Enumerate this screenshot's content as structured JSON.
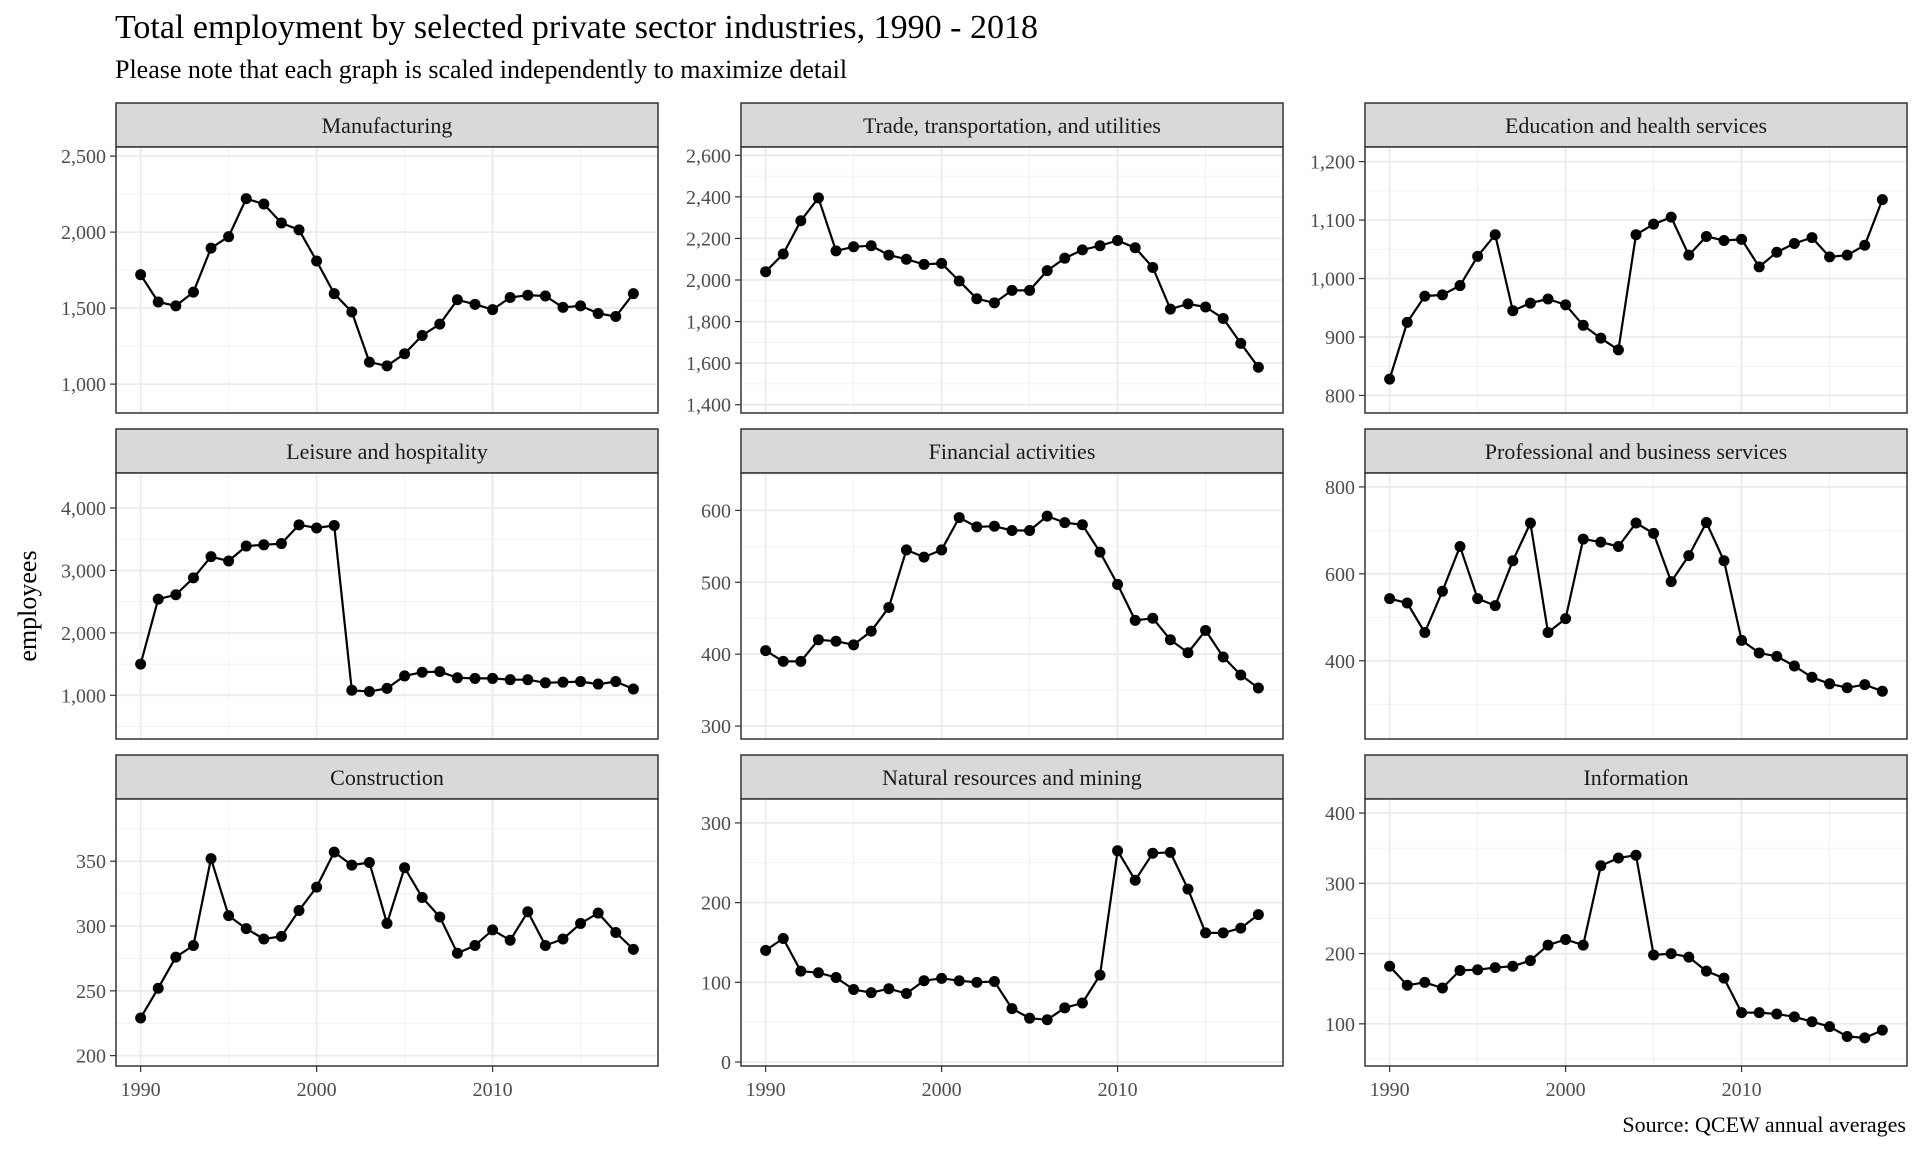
{
  "title": "Total employment by selected private sector industries, 1990 - 2018",
  "subtitle": "Please note that each graph is scaled independently to maximize detail",
  "ylabel": "employees",
  "caption": "Source: QCEW annual averages",
  "chart_data": {
    "type": "line",
    "x_ticks": [
      1990,
      2000,
      2010
    ],
    "xlim": [
      1988.6,
      2019.4
    ],
    "panels": [
      {
        "name": "Manufacturing",
        "ylim": [
          810,
          2560
        ],
        "y_ticks": [
          1000,
          1500,
          2000,
          2500
        ],
        "y_tick_labels": [
          "1,000",
          "1,500",
          "2,000",
          "2,500"
        ],
        "x": [
          1990,
          1991,
          1992,
          1993,
          1994,
          1995,
          1996,
          1997,
          1998,
          1999,
          2000,
          2001,
          2002,
          2003,
          2004,
          2005,
          2006,
          2007,
          2008,
          2009,
          2010,
          2011,
          2012,
          2013,
          2014,
          2015,
          2016,
          2017,
          2018
        ],
        "values": [
          1720,
          1540,
          1515,
          1605,
          1895,
          1970,
          2220,
          2185,
          2060,
          2015,
          1810,
          1595,
          1475,
          1145,
          1120,
          1200,
          1320,
          1395,
          1555,
          1525,
          1490,
          1570,
          1585,
          1580,
          1505,
          1515,
          1465,
          1445,
          1595
        ]
      },
      {
        "name": "Trade, transportation, and utilities",
        "ylim": [
          1360,
          2640
        ],
        "y_ticks": [
          1400,
          1600,
          1800,
          2000,
          2200,
          2400,
          2600
        ],
        "y_tick_labels": [
          "1,400",
          "1,600",
          "1,800",
          "2,000",
          "2,200",
          "2,400",
          "2,600"
        ],
        "x": [
          1990,
          1991,
          1992,
          1993,
          1994,
          1995,
          1996,
          1997,
          1998,
          1999,
          2000,
          2001,
          2002,
          2003,
          2004,
          2005,
          2006,
          2007,
          2008,
          2009,
          2010,
          2011,
          2012,
          2013,
          2014,
          2015,
          2016,
          2017,
          2018
        ],
        "values": [
          2040,
          2125,
          2285,
          2395,
          2140,
          2160,
          2165,
          2120,
          2100,
          2075,
          2080,
          1995,
          1910,
          1890,
          1950,
          1950,
          2045,
          2105,
          2145,
          2165,
          2190,
          2155,
          2060,
          1860,
          1885,
          1870,
          1815,
          1695,
          1580
        ]
      },
      {
        "name": "Education and health services",
        "ylim": [
          770,
          1225
        ],
        "y_ticks": [
          800,
          900,
          1000,
          1100,
          1200
        ],
        "y_tick_labels": [
          "800",
          "900",
          "1,000",
          "1,100",
          "1,200"
        ],
        "x": [
          1990,
          1991,
          1992,
          1993,
          1994,
          1995,
          1996,
          1997,
          1998,
          1999,
          2000,
          2001,
          2002,
          2003,
          2004,
          2005,
          2006,
          2007,
          2008,
          2009,
          2010,
          2011,
          2012,
          2013,
          2014,
          2015,
          2016,
          2017,
          2018
        ],
        "values": [
          828,
          925,
          970,
          972,
          988,
          1038,
          1075,
          945,
          958,
          965,
          955,
          920,
          898,
          878,
          1075,
          1093,
          1105,
          1040,
          1072,
          1065,
          1067,
          1020,
          1045,
          1060,
          1070,
          1037,
          1040,
          1057,
          1135
        ]
      },
      {
        "name": "Leisure and hospitality",
        "ylim": [
          300,
          4560
        ],
        "y_ticks": [
          1000,
          2000,
          3000,
          4000
        ],
        "y_tick_labels": [
          "1,000",
          "2,000",
          "3,000",
          "4,000"
        ],
        "x": [
          1990,
          1991,
          1992,
          1993,
          1994,
          1995,
          1996,
          1997,
          1998,
          1999,
          2000,
          2001,
          2002,
          2003,
          2004,
          2005,
          2006,
          2007,
          2008,
          2009,
          2010,
          2011,
          2012,
          2013,
          2014,
          2015,
          2016,
          2017,
          2018
        ],
        "values": [
          1500,
          2540,
          2610,
          2880,
          3220,
          3150,
          3390,
          3410,
          3430,
          3730,
          3680,
          3720,
          1080,
          1060,
          1110,
          1310,
          1370,
          1380,
          1280,
          1270,
          1270,
          1250,
          1250,
          1200,
          1210,
          1220,
          1180,
          1220,
          1100
        ]
      },
      {
        "name": "Financial activities",
        "ylim": [
          282,
          652
        ],
        "y_ticks": [
          300,
          400,
          500,
          600
        ],
        "y_tick_labels": [
          "300",
          "400",
          "500",
          "600"
        ],
        "x": [
          1990,
          1991,
          1992,
          1993,
          1994,
          1995,
          1996,
          1997,
          1998,
          1999,
          2000,
          2001,
          2002,
          2003,
          2004,
          2005,
          2006,
          2007,
          2008,
          2009,
          2010,
          2011,
          2012,
          2013,
          2014,
          2015,
          2016,
          2017,
          2018
        ],
        "values": [
          405,
          390,
          390,
          420,
          418,
          413,
          432,
          465,
          545,
          535,
          545,
          590,
          577,
          578,
          572,
          572,
          592,
          583,
          580,
          542,
          497,
          447,
          450,
          420,
          402,
          433,
          396,
          371,
          353
        ]
      },
      {
        "name": "Professional and business services",
        "ylim": [
          220,
          832
        ],
        "y_ticks": [
          400,
          600,
          800
        ],
        "y_tick_labels": [
          "400",
          "600",
          "800"
        ],
        "x": [
          1990,
          1991,
          1992,
          1993,
          1994,
          1995,
          1996,
          1997,
          1998,
          1999,
          2000,
          2001,
          2002,
          2003,
          2004,
          2005,
          2006,
          2007,
          2008,
          2009,
          2010,
          2011,
          2012,
          2013,
          2014,
          2015,
          2016,
          2017,
          2018
        ],
        "values": [
          543,
          533,
          465,
          560,
          663,
          543,
          527,
          630,
          717,
          465,
          497,
          680,
          673,
          663,
          717,
          693,
          582,
          642,
          718,
          630,
          447,
          418,
          410,
          388,
          362,
          347,
          338,
          345,
          330
        ]
      },
      {
        "name": "Construction",
        "ylim": [
          192,
          398
        ],
        "y_ticks": [
          200,
          250,
          300,
          350
        ],
        "y_tick_labels": [
          "200",
          "250",
          "300",
          "350"
        ],
        "x": [
          1990,
          1991,
          1992,
          1993,
          1994,
          1995,
          1996,
          1997,
          1998,
          1999,
          2000,
          2001,
          2002,
          2003,
          2004,
          2005,
          2006,
          2007,
          2008,
          2009,
          2010,
          2011,
          2012,
          2013,
          2014,
          2015,
          2016,
          2017,
          2018
        ],
        "values": [
          229,
          252,
          276,
          285,
          352,
          308,
          298,
          290,
          292,
          312,
          330,
          357,
          347,
          349,
          302,
          345,
          322,
          307,
          279,
          285,
          297,
          289,
          311,
          285,
          290,
          302,
          310,
          295,
          282
        ]
      },
      {
        "name": "Natural resources and mining",
        "ylim": [
          -5,
          330
        ],
        "y_ticks": [
          0,
          100,
          200,
          300
        ],
        "y_tick_labels": [
          "0",
          "100",
          "200",
          "300"
        ],
        "x": [
          1990,
          1991,
          1992,
          1993,
          1994,
          1995,
          1996,
          1997,
          1998,
          1999,
          2000,
          2001,
          2002,
          2003,
          2004,
          2005,
          2006,
          2007,
          2008,
          2009,
          2010,
          2011,
          2012,
          2013,
          2014,
          2015,
          2016,
          2017,
          2018
        ],
        "values": [
          140,
          155,
          114,
          112,
          106,
          91,
          87,
          92,
          86,
          102,
          105,
          102,
          100,
          101,
          67,
          55,
          53,
          68,
          74,
          109,
          265,
          228,
          262,
          263,
          217,
          162,
          162,
          168,
          185
        ]
      },
      {
        "name": "Information",
        "ylim": [
          40,
          420
        ],
        "y_ticks": [
          100,
          200,
          300,
          400
        ],
        "y_tick_labels": [
          "100",
          "200",
          "300",
          "400"
        ],
        "x": [
          1990,
          1991,
          1992,
          1993,
          1994,
          1995,
          1996,
          1997,
          1998,
          1999,
          2000,
          2001,
          2002,
          2003,
          2004,
          2005,
          2006,
          2007,
          2008,
          2009,
          2010,
          2011,
          2012,
          2013,
          2014,
          2015,
          2016,
          2017,
          2018
        ],
        "values": [
          182,
          155,
          159,
          151,
          176,
          177,
          180,
          182,
          190,
          212,
          220,
          212,
          325,
          336,
          340,
          198,
          200,
          195,
          175,
          165,
          116,
          116,
          114,
          110,
          103,
          96,
          82,
          80,
          91
        ]
      }
    ]
  }
}
